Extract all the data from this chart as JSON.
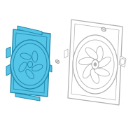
{
  "bg_color": "#ffffff",
  "shroud_fill": "#55c5e8",
  "shroud_edge": "#2288aa",
  "outline_color": "#b0b0b0",
  "screw_color": "#999999",
  "figsize": [
    2.0,
    2.0
  ],
  "dpi": 100
}
